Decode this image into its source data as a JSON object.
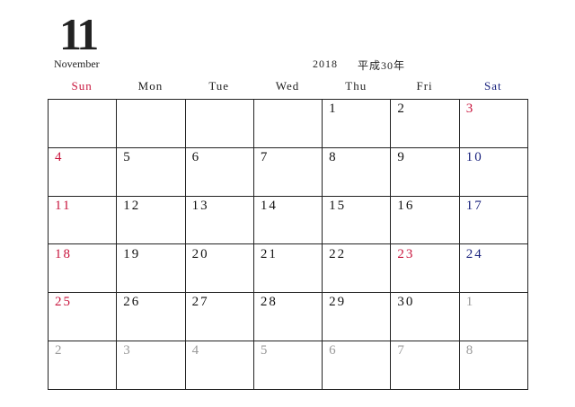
{
  "header": {
    "month": "11",
    "month_name": "November",
    "year": "2018",
    "era_year": "平成30年"
  },
  "weekdays": [
    {
      "label": "Sun",
      "color": "#c8143c"
    },
    {
      "label": "Mon",
      "color": "#222222"
    },
    {
      "label": "Tue",
      "color": "#222222"
    },
    {
      "label": "Wed",
      "color": "#222222"
    },
    {
      "label": "Thu",
      "color": "#222222"
    },
    {
      "label": "Fri",
      "color": "#222222"
    },
    {
      "label": "Sat",
      "color": "#1a237e"
    }
  ],
  "weeks": [
    [
      null,
      null,
      null,
      null,
      {
        "day": "1",
        "color": "#111111"
      },
      {
        "day": "2",
        "color": "#111111"
      },
      {
        "day": "3",
        "color": "#c8143c"
      }
    ],
    [
      {
        "day": "4",
        "color": "#c8143c"
      },
      {
        "day": "5",
        "color": "#111111"
      },
      {
        "day": "6",
        "color": "#111111"
      },
      {
        "day": "7",
        "color": "#111111"
      },
      {
        "day": "8",
        "color": "#111111"
      },
      {
        "day": "9",
        "color": "#111111"
      },
      {
        "day": "10",
        "color": "#1a237e"
      }
    ],
    [
      {
        "day": "11",
        "color": "#c8143c"
      },
      {
        "day": "12",
        "color": "#111111"
      },
      {
        "day": "13",
        "color": "#111111"
      },
      {
        "day": "14",
        "color": "#111111"
      },
      {
        "day": "15",
        "color": "#111111"
      },
      {
        "day": "16",
        "color": "#111111"
      },
      {
        "day": "17",
        "color": "#1a237e"
      }
    ],
    [
      {
        "day": "18",
        "color": "#c8143c"
      },
      {
        "day": "19",
        "color": "#111111"
      },
      {
        "day": "20",
        "color": "#111111"
      },
      {
        "day": "21",
        "color": "#111111"
      },
      {
        "day": "22",
        "color": "#111111"
      },
      {
        "day": "23",
        "color": "#c8143c"
      },
      {
        "day": "24",
        "color": "#1a237e"
      }
    ],
    [
      {
        "day": "25",
        "color": "#c8143c"
      },
      {
        "day": "26",
        "color": "#111111"
      },
      {
        "day": "27",
        "color": "#111111"
      },
      {
        "day": "28",
        "color": "#111111"
      },
      {
        "day": "29",
        "color": "#111111"
      },
      {
        "day": "30",
        "color": "#111111"
      },
      {
        "day": "1",
        "color": "#999999"
      }
    ],
    [
      {
        "day": "2",
        "color": "#999999"
      },
      {
        "day": "3",
        "color": "#999999"
      },
      {
        "day": "4",
        "color": "#999999"
      },
      {
        "day": "5",
        "color": "#999999"
      },
      {
        "day": "6",
        "color": "#999999"
      },
      {
        "day": "7",
        "color": "#999999"
      },
      {
        "day": "8",
        "color": "#999999"
      }
    ]
  ]
}
